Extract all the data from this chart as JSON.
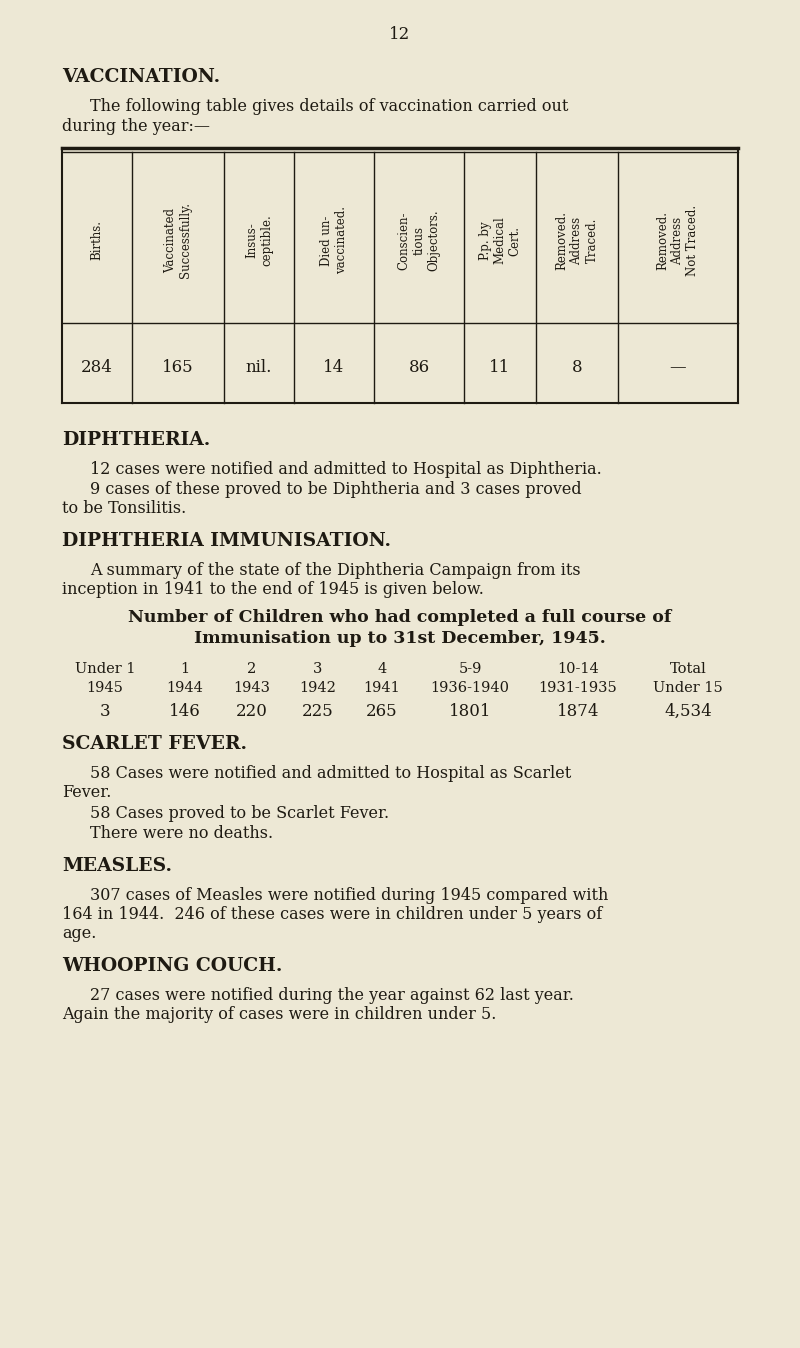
{
  "bg_color": "#ede8d5",
  "text_color": "#1e1a12",
  "page_number": "12",
  "section1_title": "VACCINATION.",
  "table_headers": [
    "Births.",
    "Vaccinated\nSuccessfully.",
    "Insus-\nceptible.",
    "Died un-\nvaccinated.",
    "Conscien-\ntious\nObjectors.",
    "P.p. by\nMedical\nCert.",
    "Removed.\nAddress\nTraced.",
    "Removed.\nAddress\nNot Traced."
  ],
  "table_data": [
    "284",
    "165",
    "nil.",
    "14",
    "86",
    "11",
    "8",
    "—"
  ],
  "section2_title": "DIPHTHERIA.",
  "section3_title": "DIPHTHERIA IMMUNISATION.",
  "section3_subtitle1": "Number of Children who had completed a full course of",
  "section3_subtitle2": "Immunisation up to 31st December, 1945.",
  "imm_row1": [
    "Under 1",
    "1",
    "2",
    "3",
    "4",
    "5-9",
    "10-14",
    "Total"
  ],
  "imm_row2": [
    "1945",
    "1944",
    "1943",
    "1942",
    "1941",
    "1936-1940",
    "1931-1935",
    "Under 15"
  ],
  "imm_row3": [
    "3",
    "146",
    "220",
    "225",
    "265",
    "1801",
    "1874",
    "4,534"
  ],
  "section4_title": "SCARLET FEVER.",
  "section5_title": "MEASLES.",
  "section6_title": "WHOOPING COUCH."
}
